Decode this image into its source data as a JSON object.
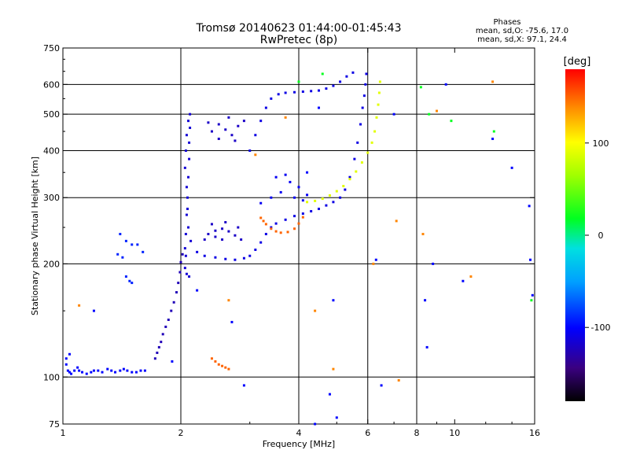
{
  "chart_data": {
    "type": "scatter",
    "title": "Tromsø 20140623 01:44:00-01:45:43",
    "subtitle": "RwPretec (8p)",
    "stats": {
      "heading": "Phases",
      "line1": "mean, sd,O: -75.6, 17.0",
      "line2": "mean, sd,X:  97.1, 24.4"
    },
    "xlabel": "Frequency [MHz]",
    "ylabel": "Stationary phase Virtual Height [km]",
    "x_scale": "log",
    "y_scale": "log",
    "xlim": [
      1,
      16
    ],
    "ylim": [
      75,
      750
    ],
    "x_ticks": [
      1,
      2,
      4,
      6,
      8,
      10,
      16
    ],
    "x_tick_labels": [
      "1",
      "2",
      "4",
      "6",
      "8",
      "10",
      "16"
    ],
    "x_grid": [
      2,
      4,
      6,
      8
    ],
    "y_ticks": [
      75,
      100,
      200,
      300,
      400,
      500,
      600,
      750
    ],
    "y_tick_labels": [
      "75",
      "100",
      "200",
      "300",
      "400",
      "500",
      "600",
      "750"
    ],
    "y_grid": [
      100,
      200,
      300,
      400,
      500,
      600
    ],
    "grid": true,
    "colorbar": {
      "label": "[deg]",
      "range": [
        -180,
        180
      ],
      "ticks": [
        -100,
        0,
        100
      ],
      "tick_labels": [
        "-100",
        "0",
        "100"
      ]
    },
    "traces": [
      {
        "name": "e-layer-low",
        "phase": -100,
        "points": [
          [
            1.02,
            108
          ],
          [
            1.03,
            104
          ],
          [
            1.04,
            103
          ],
          [
            1.05,
            102
          ],
          [
            1.07,
            104
          ],
          [
            1.09,
            106
          ],
          [
            1.1,
            104
          ],
          [
            1.12,
            103
          ],
          [
            1.15,
            102
          ],
          [
            1.18,
            103
          ],
          [
            1.2,
            104
          ],
          [
            1.23,
            104
          ],
          [
            1.26,
            103
          ],
          [
            1.3,
            105
          ],
          [
            1.33,
            104
          ],
          [
            1.36,
            103
          ],
          [
            1.4,
            104
          ],
          [
            1.43,
            105
          ],
          [
            1.46,
            104
          ],
          [
            1.5,
            103
          ],
          [
            1.54,
            103
          ],
          [
            1.58,
            104
          ],
          [
            1.62,
            104
          ],
          [
            1.02,
            112
          ],
          [
            1.04,
            115
          ]
        ]
      },
      {
        "name": "e-layer-rise",
        "phase": -125,
        "points": [
          [
            1.72,
            112
          ],
          [
            1.74,
            116
          ],
          [
            1.76,
            120
          ],
          [
            1.78,
            124
          ],
          [
            1.8,
            130
          ],
          [
            1.83,
            136
          ],
          [
            1.86,
            142
          ],
          [
            1.89,
            150
          ],
          [
            1.92,
            158
          ],
          [
            1.95,
            168
          ],
          [
            1.97,
            178
          ],
          [
            1.99,
            190
          ],
          [
            2.0,
            202
          ],
          [
            2.02,
            212
          ]
        ]
      },
      {
        "name": "f-layer-band",
        "phase": -115,
        "points": [
          [
            2.05,
            220
          ],
          [
            2.06,
            240
          ],
          [
            2.07,
            270
          ],
          [
            2.08,
            300
          ],
          [
            2.09,
            340
          ],
          [
            2.1,
            380
          ],
          [
            2.1,
            420
          ],
          [
            2.11,
            460
          ],
          [
            2.11,
            500
          ],
          [
            2.09,
            480
          ],
          [
            2.07,
            440
          ],
          [
            2.06,
            400
          ],
          [
            2.05,
            360
          ],
          [
            2.07,
            320
          ],
          [
            2.08,
            280
          ],
          [
            2.09,
            250
          ],
          [
            2.06,
            210
          ],
          [
            2.05,
            195
          ],
          [
            2.07,
            188
          ],
          [
            2.1,
            185
          ],
          [
            2.12,
            230
          ]
        ]
      },
      {
        "name": "f1-trace",
        "phase": -110,
        "points": [
          [
            2.2,
            215
          ],
          [
            2.3,
            210
          ],
          [
            2.45,
            208
          ],
          [
            2.6,
            206
          ],
          [
            2.75,
            205
          ],
          [
            2.9,
            207
          ],
          [
            3.0,
            210
          ],
          [
            3.1,
            218
          ],
          [
            3.2,
            228
          ],
          [
            3.3,
            240
          ],
          [
            3.4,
            250
          ],
          [
            3.5,
            256
          ],
          [
            3.7,
            262
          ],
          [
            3.9,
            268
          ],
          [
            4.1,
            272
          ],
          [
            4.3,
            276
          ],
          [
            4.5,
            280
          ],
          [
            4.7,
            286
          ],
          [
            4.9,
            292
          ],
          [
            5.1,
            300
          ],
          [
            5.25,
            315
          ],
          [
            5.4,
            340
          ],
          [
            5.55,
            380
          ],
          [
            5.65,
            420
          ],
          [
            5.75,
            470
          ],
          [
            5.82,
            520
          ],
          [
            5.88,
            560
          ],
          [
            5.92,
            600
          ],
          [
            5.95,
            640
          ]
        ]
      },
      {
        "name": "f1-blob",
        "phase": -120,
        "points": [
          [
            2.35,
            240
          ],
          [
            2.45,
            245
          ],
          [
            2.55,
            248
          ],
          [
            2.65,
            244
          ],
          [
            2.75,
            238
          ],
          [
            2.85,
            232
          ],
          [
            2.55,
            232
          ],
          [
            2.45,
            236
          ],
          [
            2.3,
            232
          ],
          [
            2.4,
            255
          ],
          [
            2.6,
            258
          ],
          [
            2.8,
            250
          ]
        ]
      },
      {
        "name": "upper-cluster",
        "phase": -120,
        "points": [
          [
            2.4,
            450
          ],
          [
            2.5,
            470
          ],
          [
            2.6,
            455
          ],
          [
            2.7,
            440
          ],
          [
            2.8,
            465
          ],
          [
            2.9,
            480
          ],
          [
            2.5,
            430
          ],
          [
            2.65,
            490
          ],
          [
            2.75,
            425
          ],
          [
            2.35,
            475
          ]
        ]
      },
      {
        "name": "f2-top",
        "phase": -110,
        "points": [
          [
            3.0,
            400
          ],
          [
            3.1,
            440
          ],
          [
            3.2,
            480
          ],
          [
            3.3,
            520
          ],
          [
            3.4,
            550
          ],
          [
            3.55,
            565
          ],
          [
            3.7,
            570
          ],
          [
            3.9,
            572
          ],
          [
            4.1,
            574
          ],
          [
            4.3,
            576
          ],
          [
            4.5,
            578
          ],
          [
            4.7,
            585
          ],
          [
            4.9,
            595
          ],
          [
            5.1,
            610
          ],
          [
            5.3,
            630
          ],
          [
            5.5,
            645
          ]
        ]
      },
      {
        "name": "f2-mid",
        "phase": -105,
        "points": [
          [
            3.2,
            290
          ],
          [
            3.4,
            300
          ],
          [
            3.6,
            310
          ],
          [
            3.8,
            330
          ],
          [
            4.0,
            320
          ],
          [
            3.5,
            340
          ],
          [
            3.7,
            345
          ],
          [
            3.9,
            300
          ],
          [
            4.1,
            295
          ],
          [
            4.2,
            305
          ]
        ]
      },
      {
        "name": "x-trace-orange",
        "phase": 150,
        "points": [
          [
            3.3,
            255
          ],
          [
            3.4,
            248
          ],
          [
            3.5,
            244
          ],
          [
            3.6,
            242
          ],
          [
            3.75,
            243
          ],
          [
            3.9,
            248
          ],
          [
            4.0,
            256
          ],
          [
            4.1,
            266
          ],
          [
            3.2,
            265
          ],
          [
            3.25,
            260
          ]
        ]
      },
      {
        "name": "x-trace-yellow",
        "phase": 90,
        "points": [
          [
            4.2,
            292
          ],
          [
            4.4,
            294
          ],
          [
            4.6,
            298
          ],
          [
            4.8,
            304
          ],
          [
            5.0,
            312
          ],
          [
            5.2,
            322
          ],
          [
            5.4,
            336
          ],
          [
            5.6,
            352
          ],
          [
            5.8,
            372
          ],
          [
            6.0,
            395
          ],
          [
            6.15,
            420
          ],
          [
            6.25,
            450
          ],
          [
            6.32,
            490
          ],
          [
            6.38,
            530
          ],
          [
            6.42,
            570
          ],
          [
            6.45,
            610
          ]
        ]
      },
      {
        "name": "x-cusp-orange",
        "phase": 150,
        "points": [
          [
            2.4,
            112
          ],
          [
            2.45,
            110
          ],
          [
            2.5,
            108
          ],
          [
            2.55,
            107
          ],
          [
            2.6,
            106
          ],
          [
            2.65,
            105
          ]
        ]
      },
      {
        "name": "scatter-low-1",
        "phase": -90,
        "points": [
          [
            1.4,
            240
          ],
          [
            1.45,
            230
          ],
          [
            1.5,
            225
          ],
          [
            1.55,
            225
          ],
          [
            1.45,
            185
          ],
          [
            1.48,
            180
          ],
          [
            1.5,
            178
          ],
          [
            1.38,
            212
          ],
          [
            1.42,
            208
          ],
          [
            1.6,
            215
          ]
        ]
      },
      {
        "name": "scatter-misc",
        "phase": -100,
        "points": [
          [
            1.2,
            150
          ],
          [
            1.9,
            110
          ],
          [
            2.2,
            170
          ],
          [
            2.7,
            140
          ],
          [
            2.9,
            95
          ],
          [
            4.5,
            520
          ],
          [
            4.2,
            350
          ],
          [
            4.8,
            90
          ],
          [
            5.0,
            78
          ],
          [
            4.4,
            75
          ],
          [
            4.9,
            160
          ],
          [
            6.3,
            205
          ],
          [
            6.5,
            95
          ],
          [
            7.0,
            500
          ],
          [
            8.4,
            160
          ],
          [
            8.5,
            120
          ],
          [
            8.8,
            200
          ],
          [
            9.5,
            600
          ],
          [
            10.5,
            180
          ],
          [
            12.5,
            430
          ],
          [
            14.0,
            360
          ],
          [
            15.5,
            285
          ],
          [
            15.6,
            205
          ],
          [
            15.8,
            165
          ]
        ]
      },
      {
        "name": "scatter-warm",
        "phase": 140,
        "points": [
          [
            1.1,
            155
          ],
          [
            2.65,
            160
          ],
          [
            3.1,
            390
          ],
          [
            3.7,
            490
          ],
          [
            4.4,
            150
          ],
          [
            4.9,
            105
          ],
          [
            6.2,
            200
          ],
          [
            7.2,
            98
          ],
          [
            8.3,
            240
          ],
          [
            9.0,
            510
          ],
          [
            11.0,
            185
          ],
          [
            12.5,
            610
          ],
          [
            7.1,
            260
          ]
        ]
      },
      {
        "name": "scatter-green",
        "phase": 20,
        "points": [
          [
            4.0,
            610
          ],
          [
            4.6,
            640
          ],
          [
            8.2,
            590
          ],
          [
            8.6,
            500
          ],
          [
            9.8,
            480
          ],
          [
            12.6,
            450
          ],
          [
            15.7,
            160
          ]
        ]
      }
    ]
  }
}
